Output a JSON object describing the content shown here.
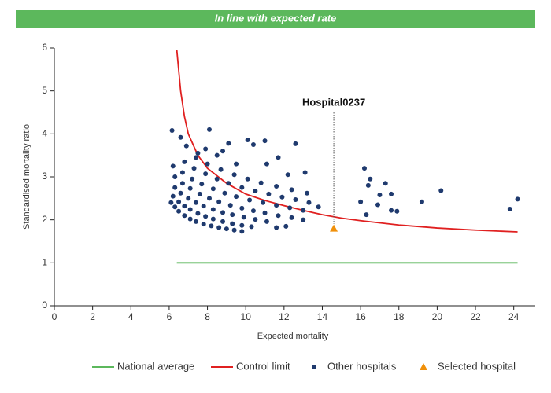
{
  "chart_data": {
    "type": "scatter",
    "title": "In line with expected rate",
    "banner_color": "#5cb85c",
    "xlabel": "Expected mortality",
    "ylabel": "Standardised mortality ratio",
    "xlim": [
      0,
      25
    ],
    "ylim": [
      0,
      6
    ],
    "xticks": [
      0,
      2,
      4,
      6,
      8,
      10,
      12,
      14,
      16,
      18,
      20,
      22,
      24
    ],
    "yticks": [
      0,
      1,
      2,
      3,
      4,
      5,
      6
    ],
    "annotation": "Hospital0237",
    "series": [
      {
        "name": "National average",
        "color": "#5cb85c",
        "marker": "line",
        "x": [
          6.4,
          24.2
        ],
        "values": [
          1,
          1
        ]
      },
      {
        "name": "Control limit",
        "color": "#e02020",
        "marker": "line",
        "x": [
          6.4,
          6.6,
          6.8,
          7.0,
          7.5,
          8,
          9,
          10,
          11,
          12,
          13,
          14,
          15,
          16,
          18,
          20,
          22,
          24.2
        ],
        "values": [
          5.95,
          5.0,
          4.4,
          4.0,
          3.5,
          3.2,
          2.85,
          2.6,
          2.45,
          2.33,
          2.22,
          2.12,
          2.04,
          1.98,
          1.88,
          1.81,
          1.76,
          1.72
        ]
      },
      {
        "name": "Other hospitals",
        "color": "#1f3a6e",
        "marker": "dot",
        "x": [
          6.1,
          6.3,
          6.5,
          6.8,
          7.1,
          7.4,
          7.8,
          8.2,
          8.6,
          9.0,
          9.4,
          9.8,
          6.2,
          6.5,
          6.8,
          7.1,
          7.5,
          7.9,
          8.3,
          8.8,
          9.3,
          9.8,
          10.3,
          6.3,
          6.6,
          7.0,
          7.4,
          7.8,
          8.3,
          8.8,
          9.3,
          9.9,
          10.5,
          11.1,
          6.3,
          6.7,
          7.1,
          7.6,
          8.1,
          8.6,
          9.2,
          9.8,
          10.4,
          11.0,
          11.7,
          12.4,
          6.2,
          6.7,
          7.2,
          7.7,
          8.3,
          8.9,
          9.5,
          10.2,
          10.9,
          11.6,
          12.3,
          13.0,
          6.8,
          7.3,
          7.9,
          8.5,
          9.1,
          9.8,
          10.5,
          11.2,
          11.9,
          12.6,
          13.3,
          7.4,
          8.0,
          8.7,
          9.4,
          10.1,
          10.8,
          11.6,
          12.4,
          13.2,
          6.15,
          6.6,
          6.9,
          7.5,
          7.9,
          8.1,
          8.5,
          8.8,
          9.1,
          9.5,
          10.1,
          10.4,
          11.0,
          11.1,
          11.7,
          12.6,
          12.2,
          13.1,
          13.8,
          12.1,
          11.6,
          13.0,
          16.2,
          16.5,
          16.4,
          16.0,
          16.3,
          16.9,
          17.0,
          17.3,
          17.6,
          17.6,
          17.9,
          19.2,
          20.2,
          23.8,
          24.2
        ],
        "values": [
          2.4,
          2.3,
          2.2,
          2.1,
          2.02,
          1.96,
          1.9,
          1.86,
          1.82,
          1.79,
          1.76,
          1.73,
          2.55,
          2.42,
          2.32,
          2.24,
          2.15,
          2.08,
          2.02,
          1.96,
          1.91,
          1.87,
          1.84,
          2.75,
          2.62,
          2.5,
          2.4,
          2.32,
          2.24,
          2.17,
          2.12,
          2.06,
          2.01,
          1.96,
          3.0,
          2.85,
          2.73,
          2.6,
          2.5,
          2.42,
          2.34,
          2.27,
          2.21,
          2.16,
          2.1,
          2.05,
          3.25,
          3.1,
          2.95,
          2.83,
          2.72,
          2.62,
          2.54,
          2.46,
          2.4,
          2.34,
          2.28,
          2.22,
          3.35,
          3.2,
          3.07,
          2.95,
          2.85,
          2.75,
          2.67,
          2.6,
          2.53,
          2.47,
          2.4,
          3.45,
          3.3,
          3.17,
          3.05,
          2.95,
          2.86,
          2.78,
          2.7,
          2.62,
          4.08,
          3.92,
          3.72,
          3.55,
          3.65,
          4.1,
          3.5,
          3.6,
          3.78,
          3.3,
          3.86,
          3.75,
          3.84,
          3.3,
          3.45,
          3.77,
          3.05,
          3.1,
          2.3,
          1.85,
          1.82,
          2.0,
          3.2,
          2.95,
          2.8,
          2.42,
          2.12,
          2.35,
          2.58,
          2.85,
          2.6,
          2.22,
          2.2,
          2.42,
          2.68,
          2.25,
          2.48
        ]
      },
      {
        "name": "Selected hospital",
        "color": "#f0900a",
        "marker": "triangle",
        "x": [
          14.6
        ],
        "values": [
          1.8
        ]
      }
    ]
  }
}
